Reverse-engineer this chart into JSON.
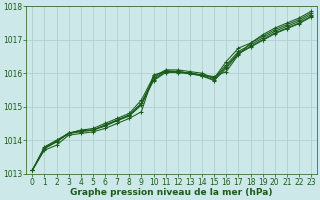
{
  "xlabel": "Graphe pression niveau de la mer (hPa)",
  "xlim": [
    -0.5,
    23.5
  ],
  "ylim": [
    1013,
    1018
  ],
  "yticks": [
    1013,
    1014,
    1015,
    1016,
    1017,
    1018
  ],
  "xticks": [
    0,
    1,
    2,
    3,
    4,
    5,
    6,
    7,
    8,
    9,
    10,
    11,
    12,
    13,
    14,
    15,
    16,
    17,
    18,
    19,
    20,
    21,
    22,
    23
  ],
  "bg_color": "#cce8e8",
  "grid_color": "#aacccc",
  "line_color": "#1a5c1a",
  "lines": [
    [
      1013.1,
      1013.7,
      1013.85,
      1014.15,
      1014.2,
      1014.25,
      1014.35,
      1014.5,
      1014.65,
      1014.85,
      1015.95,
      1016.05,
      1016.05,
      1016.0,
      1015.95,
      1015.9,
      1016.05,
      1016.55,
      1016.9,
      1017.15,
      1017.35,
      1017.5,
      1017.65,
      1017.85
    ],
    [
      1013.1,
      1013.75,
      1013.95,
      1014.2,
      1014.25,
      1014.3,
      1014.45,
      1014.6,
      1014.75,
      1015.1,
      1015.85,
      1016.08,
      1016.05,
      1016.0,
      1015.95,
      1015.85,
      1016.35,
      1016.75,
      1016.9,
      1017.1,
      1017.3,
      1017.45,
      1017.6,
      1017.8
    ],
    [
      1013.1,
      1013.75,
      1013.95,
      1014.2,
      1014.3,
      1014.35,
      1014.5,
      1014.65,
      1014.8,
      1015.2,
      1015.9,
      1016.1,
      1016.1,
      1016.05,
      1016.0,
      1015.85,
      1016.25,
      1016.65,
      1016.85,
      1017.05,
      1017.25,
      1017.4,
      1017.55,
      1017.75
    ],
    [
      1013.1,
      1013.8,
      1014.0,
      1014.2,
      1014.3,
      1014.3,
      1014.45,
      1014.6,
      1014.75,
      1015.1,
      1015.8,
      1016.05,
      1016.05,
      1016.0,
      1015.93,
      1015.8,
      1016.2,
      1016.6,
      1016.8,
      1017.0,
      1017.2,
      1017.35,
      1017.5,
      1017.7
    ],
    [
      1013.1,
      1013.78,
      1013.98,
      1014.22,
      1014.28,
      1014.3,
      1014.42,
      1014.58,
      1014.72,
      1015.05,
      1015.78,
      1016.02,
      1016.02,
      1015.98,
      1015.92,
      1015.78,
      1016.15,
      1016.58,
      1016.78,
      1016.98,
      1017.18,
      1017.33,
      1017.48,
      1017.68
    ]
  ],
  "marker": "+",
  "markersize": 3.5,
  "linewidth": 0.75,
  "tick_fontsize": 5.5,
  "label_fontsize": 6.5,
  "label_color": "#1a5c1a",
  "tick_color": "#1a5c1a",
  "spine_color": "#1a5c1a"
}
